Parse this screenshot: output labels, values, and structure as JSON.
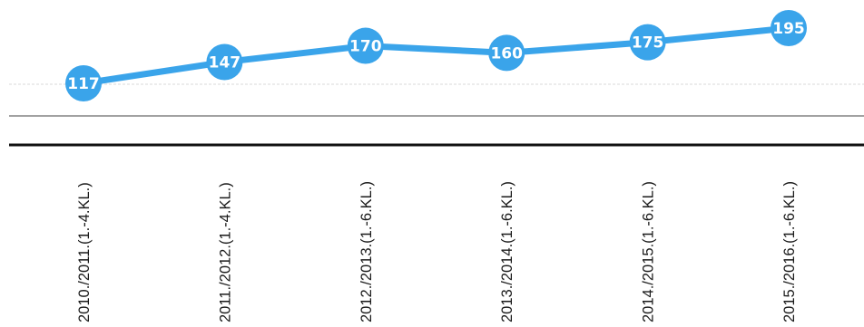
{
  "chart_data": {
    "type": "line",
    "categories": [
      "2010./2011.(1.-4.KL.)",
      "2011./2012.(1.-4.KL.)",
      "2012./2013.(1.-6.KL.)",
      "2013./2014.(1.-6.KL.)",
      "2014./2015.(1.-6.KL.)",
      "2015./2016.(1.-6.KL.)"
    ],
    "series": [
      {
        "values": [
          117,
          147,
          170,
          160,
          175,
          195
        ],
        "color": "#3aa4ea"
      }
    ],
    "data_labels": true,
    "grid": true,
    "legend": "none"
  }
}
